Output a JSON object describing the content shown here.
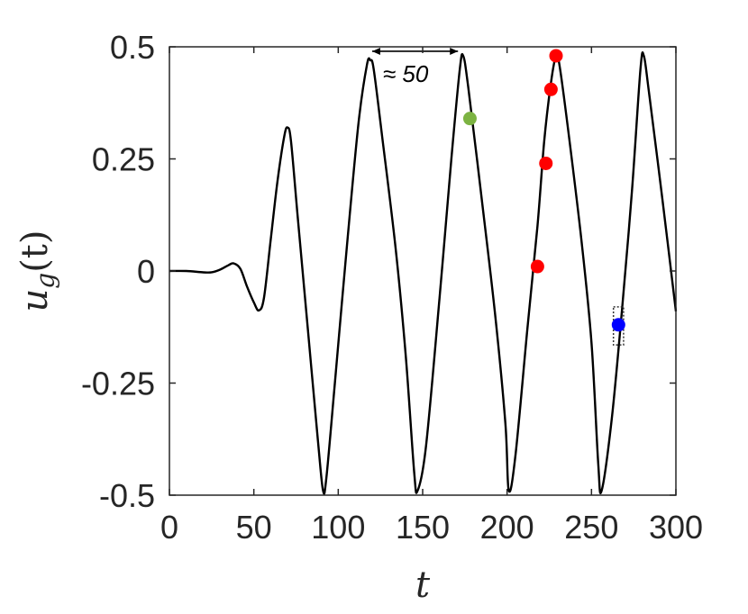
{
  "chart_data": {
    "type": "line",
    "xlabel": "t",
    "ylabel_main": "u",
    "ylabel_sub": "g",
    "ylabel_arg": "(t)",
    "xlim": [
      0,
      300
    ],
    "ylim": [
      -0.5,
      0.5
    ],
    "xticks": [
      0,
      50,
      100,
      150,
      200,
      250,
      300
    ],
    "yticks": [
      -0.5,
      -0.25,
      0,
      0.25,
      0.5
    ],
    "ytick_labels": [
      "-0.5",
      "-0.25",
      "0",
      "0.25",
      "0.5"
    ],
    "xtick_labels": [
      "0",
      "50",
      "100",
      "150",
      "200",
      "250",
      "300"
    ],
    "grid": false,
    "series": [
      {
        "color": "#000000",
        "x": [
          0,
          10,
          20,
          25,
          30,
          35,
          38,
          42,
          46,
          50,
          53,
          56,
          60,
          64,
          68,
          70,
          72,
          76,
          82,
          88,
          91,
          93,
          98,
          105,
          112,
          117,
          119,
          121,
          126,
          134,
          140,
          145,
          147,
          152,
          160,
          167,
          172,
          174,
          177,
          185,
          193,
          199,
          201,
          205,
          212,
          218,
          222,
          226,
          229,
          231,
          236,
          244,
          250,
          254,
          256,
          262,
          268,
          274,
          279,
          281,
          284,
          292,
          300
        ],
        "y": [
          0,
          0,
          -0.003,
          -0.003,
          0.003,
          0.013,
          0.017,
          0.005,
          -0.035,
          -0.07,
          -0.088,
          -0.06,
          0.07,
          0.2,
          0.3,
          0.32,
          0.29,
          0.12,
          -0.13,
          -0.38,
          -0.49,
          -0.46,
          -0.25,
          0.05,
          0.33,
          0.46,
          0.47,
          0.45,
          0.3,
          0.05,
          -0.19,
          -0.45,
          -0.49,
          -0.39,
          -0.06,
          0.25,
          0.45,
          0.48,
          0.41,
          0.16,
          -0.1,
          -0.34,
          -0.49,
          -0.41,
          -0.13,
          0.1,
          0.29,
          0.42,
          0.48,
          0.46,
          0.32,
          0.07,
          -0.16,
          -0.43,
          -0.49,
          -0.33,
          -0.09,
          0.18,
          0.45,
          0.48,
          0.4,
          0.16,
          -0.09
        ]
      }
    ],
    "markers": [
      {
        "x": 178,
        "y": 0.34,
        "color": "#7cb342"
      },
      {
        "x": 218,
        "y": 0.01,
        "color": "#ff0000"
      },
      {
        "x": 223,
        "y": 0.24,
        "color": "#ff0000"
      },
      {
        "x": 226,
        "y": 0.405,
        "color": "#ff0000"
      },
      {
        "x": 229,
        "y": 0.48,
        "color": "#ff0000"
      },
      {
        "x": 266,
        "y": -0.12,
        "color": "#0000ff"
      }
    ],
    "annotation": {
      "text": "≈ 50",
      "x_start": 119,
      "x_end": 172,
      "y": 0.49
    },
    "highlight_box": {
      "x0": 263,
      "x1": 269,
      "y0": -0.165,
      "y1": -0.08
    }
  }
}
